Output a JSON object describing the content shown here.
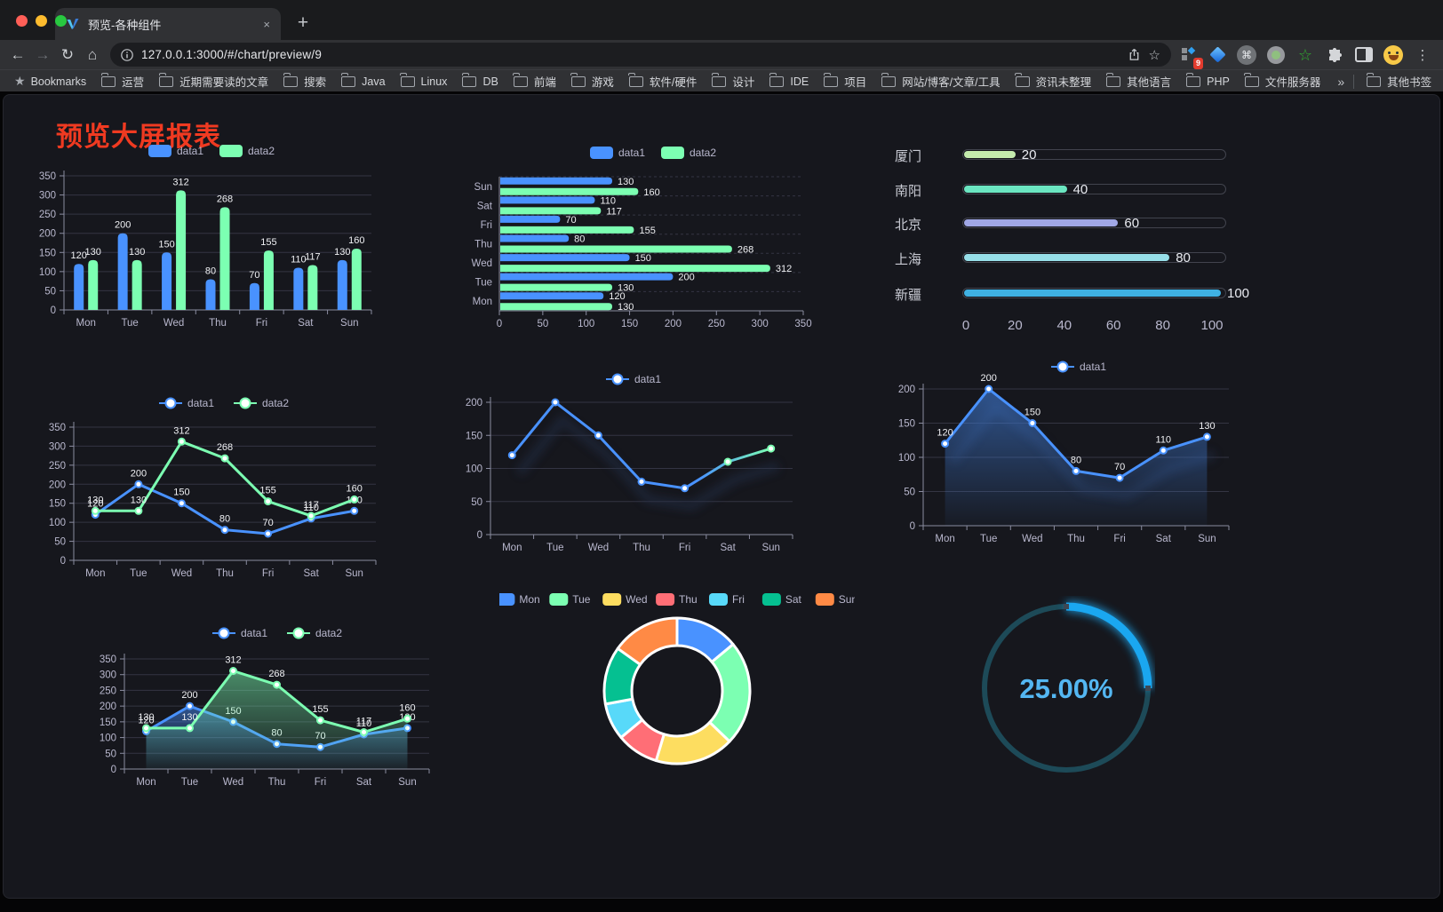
{
  "browser": {
    "tab_title": "预览-各种组件",
    "url": "127.0.0.1:3000/#/chart/preview/9",
    "bookmarks_label": "Bookmarks",
    "bookmarks": [
      "运营",
      "近期需要读的文章",
      "搜索",
      "Java",
      "Linux",
      "DB",
      "前端",
      "游戏",
      "软件/硬件",
      "设计",
      "IDE",
      "项目",
      "网站/博客/文章/工具",
      "资讯未整理",
      "其他语言",
      "PHP",
      "文件服务器"
    ],
    "other_bookmarks": "其他书签",
    "extension_badge": "9"
  },
  "icons": {
    "back": "←",
    "forward": "→",
    "reload": "↻",
    "home": "⌂",
    "new_tab": "+",
    "close_tab": "×",
    "bookmark_star": "☆",
    "bookmarks_star": "★",
    "command": "⌘",
    "green_star": "☆",
    "menu": "⋮",
    "overflow_chevron": "»"
  },
  "page": {
    "title": "预览大屏报表",
    "title_color": "#f03a21",
    "panel_bg": "#16171d"
  },
  "chart_data": [
    {
      "id": "bar-grouped",
      "type": "bar",
      "title": "",
      "legend_position": "top",
      "grid": true,
      "categories": [
        "Mon",
        "Tue",
        "Wed",
        "Thu",
        "Fri",
        "Sat",
        "Sun"
      ],
      "series": [
        {
          "name": "data1",
          "color": "#4992ff",
          "values": [
            120,
            200,
            150,
            80,
            70,
            110,
            130
          ]
        },
        {
          "name": "data2",
          "color": "#7cffb2",
          "values": [
            130,
            130,
            312,
            268,
            155,
            117,
            160
          ]
        }
      ],
      "ylim": [
        0,
        350
      ],
      "yticks": [
        0,
        50,
        100,
        150,
        200,
        250,
        300,
        350
      ],
      "labels": true
    },
    {
      "id": "bar-horizontal",
      "type": "bar",
      "orientation": "horizontal",
      "legend_position": "top",
      "grid": true,
      "categories": [
        "Mon",
        "Tue",
        "Wed",
        "Thu",
        "Fri",
        "Sat",
        "Sun"
      ],
      "series": [
        {
          "name": "data1",
          "color": "#4992ff",
          "values": [
            120,
            200,
            150,
            80,
            70,
            110,
            130
          ]
        },
        {
          "name": "data2",
          "color": "#7cffb2",
          "values": [
            130,
            130,
            312,
            268,
            155,
            117,
            160
          ]
        }
      ],
      "xlim": [
        0,
        350
      ],
      "xticks": [
        0,
        50,
        100,
        150,
        200,
        250,
        300,
        350
      ],
      "labels": true
    },
    {
      "id": "progress",
      "type": "bar",
      "subtype": "progress-bars",
      "max": 100,
      "xticks": [
        0,
        20,
        40,
        60,
        80,
        100
      ],
      "rows": [
        {
          "label": "厦门",
          "value": 20,
          "color": "#c4ebad"
        },
        {
          "label": "南阳",
          "value": 40,
          "color": "#6be6c1"
        },
        {
          "label": "北京",
          "value": 60,
          "color": "#a0a7e6"
        },
        {
          "label": "上海",
          "value": 80,
          "color": "#96dee8"
        },
        {
          "label": "新疆",
          "value": 100,
          "color": "#3fb1e3"
        }
      ]
    },
    {
      "id": "line-two",
      "type": "line",
      "legend_position": "top",
      "grid": true,
      "labels": true,
      "categories": [
        "Mon",
        "Tue",
        "Wed",
        "Thu",
        "Fri",
        "Sat",
        "Sun"
      ],
      "series": [
        {
          "name": "data1",
          "color": "#4992ff",
          "values": [
            120,
            200,
            150,
            80,
            70,
            110,
            130
          ]
        },
        {
          "name": "data2",
          "color": "#7cffb2",
          "values": [
            130,
            130,
            312,
            268,
            155,
            117,
            160
          ]
        }
      ],
      "ylim": [
        0,
        350
      ],
      "yticks": [
        0,
        50,
        100,
        150,
        200,
        250,
        300,
        350
      ]
    },
    {
      "id": "line-gradient",
      "type": "line",
      "legend_position": "top",
      "grid": true,
      "labels": false,
      "shadow": true,
      "categories": [
        "Mon",
        "Tue",
        "Wed",
        "Thu",
        "Fri",
        "Sat",
        "Sun"
      ],
      "series": [
        {
          "name": "data1",
          "gradient": [
            "#4992ff",
            "#7cffb2"
          ],
          "values": [
            120,
            200,
            150,
            80,
            70,
            110,
            130
          ]
        }
      ],
      "ylim": [
        0,
        200
      ],
      "yticks": [
        0,
        50,
        100,
        150,
        200
      ]
    },
    {
      "id": "area-single",
      "type": "area",
      "legend_position": "top",
      "grid": true,
      "labels": true,
      "shadow": true,
      "area": true,
      "categories": [
        "Mon",
        "Tue",
        "Wed",
        "Thu",
        "Fri",
        "Sat",
        "Sun"
      ],
      "series": [
        {
          "name": "data1",
          "color": "#4992ff",
          "values": [
            120,
            200,
            150,
            80,
            70,
            110,
            130
          ]
        }
      ],
      "ylim": [
        0,
        200
      ],
      "yticks": [
        0,
        50,
        100,
        150,
        200
      ]
    },
    {
      "id": "area-two",
      "type": "area",
      "legend_position": "top",
      "grid": true,
      "labels": true,
      "area": true,
      "categories": [
        "Mon",
        "Tue",
        "Wed",
        "Thu",
        "Fri",
        "Sat",
        "Sun"
      ],
      "series": [
        {
          "name": "data1",
          "color": "#4992ff",
          "values": [
            120,
            200,
            150,
            80,
            70,
            110,
            130
          ]
        },
        {
          "name": "data2",
          "color": "#7cffb2",
          "values": [
            130,
            130,
            312,
            268,
            155,
            117,
            160
          ]
        }
      ],
      "ylim": [
        0,
        350
      ],
      "yticks": [
        0,
        50,
        100,
        150,
        200,
        250,
        300,
        350
      ]
    },
    {
      "id": "donut",
      "type": "pie",
      "legend_position": "top",
      "inner_radius_ratio": 0.62,
      "labels": [
        "Mon",
        "Tue",
        "Wed",
        "Thu",
        "Fri",
        "Sat",
        "Sun"
      ],
      "values": [
        120,
        200,
        150,
        80,
        70,
        110,
        130
      ],
      "colors": [
        "#4992ff",
        "#7cffb2",
        "#fddd60",
        "#ff6e76",
        "#58d9f9",
        "#05c091",
        "#ff8a45"
      ]
    },
    {
      "id": "gauge",
      "type": "gauge",
      "value": 25,
      "max": 100,
      "label": "25.00%",
      "color": "#1aa7f0",
      "track_color": "#1d4a58",
      "text_color": "#54b7f2"
    }
  ]
}
